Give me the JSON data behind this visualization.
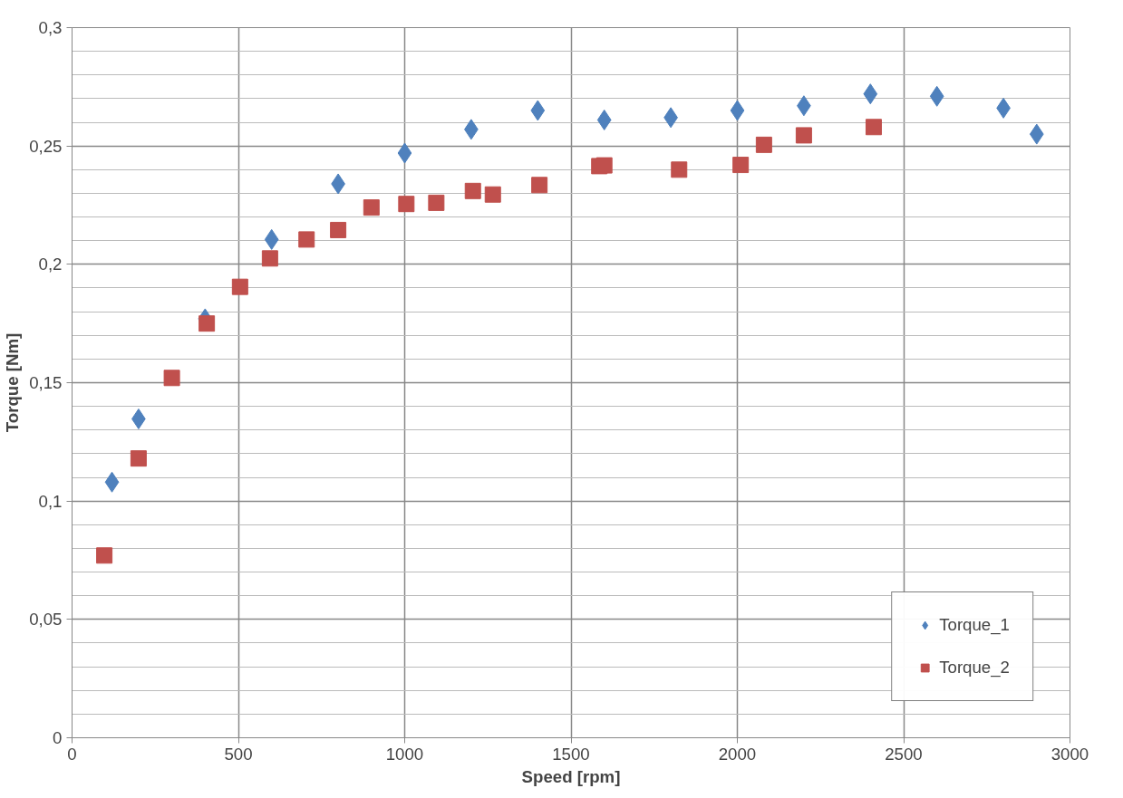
{
  "chart_data": {
    "type": "scatter",
    "xlabel": "Speed [rpm]",
    "ylabel": "Torque [Nm]",
    "xlim": [
      0,
      3000
    ],
    "xticks": [
      0,
      500,
      1000,
      1500,
      2000,
      2500,
      3000
    ],
    "ylim": [
      0,
      0.3
    ],
    "yticks": [
      {
        "value": 0,
        "label": "0"
      },
      {
        "value": 0.05,
        "label": "0,05"
      },
      {
        "value": 0.1,
        "label": "0,1"
      },
      {
        "value": 0.15,
        "label": "0,15"
      },
      {
        "value": 0.2,
        "label": "0,2"
      },
      {
        "value": 0.25,
        "label": "0,25"
      },
      {
        "value": 0.3,
        "label": "0,3"
      }
    ],
    "grid": true,
    "legend": "bottom right",
    "series": [
      {
        "name": "Torque_1",
        "color": "#4f81bd",
        "marker": "diamond",
        "x": [
          120,
          200,
          400,
          600,
          800,
          1000,
          1200,
          1400,
          1600,
          1800,
          2000,
          2200,
          2400,
          2600,
          2800,
          2900
        ],
        "values": [
          0.108,
          0.1347,
          0.177,
          0.2105,
          0.234,
          0.247,
          0.257,
          0.265,
          0.261,
          0.262,
          0.265,
          0.267,
          0.272,
          0.271,
          0.266,
          0.255
        ]
      },
      {
        "name": "Torque_2",
        "color": "#c0504d",
        "marker": "square",
        "x": [
          97,
          200,
          300,
          405,
          505,
          595,
          705,
          800,
          900,
          1005,
          1095,
          1205,
          1265,
          1405,
          1585,
          1600,
          1825,
          2010,
          2080,
          2200,
          2410
        ],
        "values": [
          0.077,
          0.118,
          0.152,
          0.175,
          0.1905,
          0.2025,
          0.2105,
          0.2145,
          0.224,
          0.2255,
          0.226,
          0.231,
          0.2295,
          0.2335,
          0.2415,
          0.2418,
          0.24,
          0.242,
          0.2505,
          0.2545,
          0.258
        ]
      }
    ]
  }
}
